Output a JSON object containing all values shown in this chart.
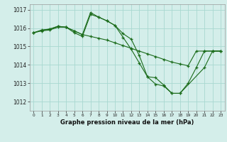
{
  "xlabel": "Graphe pression niveau de la mer (hPa)",
  "ylim": [
    1011.5,
    1017.3
  ],
  "xlim": [
    -0.5,
    23.5
  ],
  "yticks": [
    1012,
    1013,
    1014,
    1015,
    1016,
    1017
  ],
  "xticks": [
    0,
    1,
    2,
    3,
    4,
    5,
    6,
    7,
    8,
    9,
    10,
    11,
    12,
    13,
    14,
    15,
    16,
    17,
    18,
    19,
    20,
    21,
    22,
    23
  ],
  "line_color": "#1a6b1a",
  "bg_color": "#d4eeea",
  "grid_color": "#a8d8d0",
  "series": [
    {
      "x": [
        0,
        1,
        2,
        3,
        4,
        5,
        6,
        7,
        8,
        9,
        10,
        11,
        12,
        13,
        14,
        15,
        16,
        17,
        18,
        21,
        22,
        23
      ],
      "y": [
        1015.75,
        1015.9,
        1015.95,
        1016.1,
        1016.05,
        1015.85,
        1015.65,
        1016.85,
        1016.6,
        1016.4,
        1016.15,
        1015.5,
        1014.85,
        1014.1,
        1013.35,
        1013.3,
        1012.9,
        1012.45,
        1012.45,
        1013.85,
        1014.75,
        1014.75
      ]
    },
    {
      "x": [
        0,
        1,
        2,
        3,
        4,
        5,
        6,
        7,
        8,
        9,
        10,
        11,
        12,
        13,
        14,
        15,
        16,
        17,
        18,
        19,
        20,
        21,
        22,
        23
      ],
      "y": [
        1015.75,
        1015.85,
        1015.9,
        1016.05,
        1016.05,
        1015.85,
        1015.65,
        1015.55,
        1015.45,
        1015.35,
        1015.2,
        1015.05,
        1014.9,
        1014.75,
        1014.6,
        1014.45,
        1014.3,
        1014.15,
        1014.05,
        1013.95,
        1014.75,
        1014.75,
        1014.75,
        1014.75
      ]
    },
    {
      "x": [
        0,
        1,
        2,
        3,
        4,
        5,
        6,
        7,
        8,
        9,
        10,
        11,
        12,
        13,
        14,
        15,
        16,
        17,
        18,
        19,
        20,
        21,
        22,
        23
      ],
      "y": [
        1015.75,
        1015.87,
        1015.95,
        1016.1,
        1016.05,
        1015.75,
        1015.55,
        1016.75,
        1016.6,
        1016.4,
        1016.15,
        1015.7,
        1015.4,
        1014.5,
        1013.35,
        1012.95,
        1012.85,
        1012.45,
        1012.45,
        1013.0,
        1013.85,
        1014.75,
        1014.75,
        1014.75
      ]
    }
  ]
}
